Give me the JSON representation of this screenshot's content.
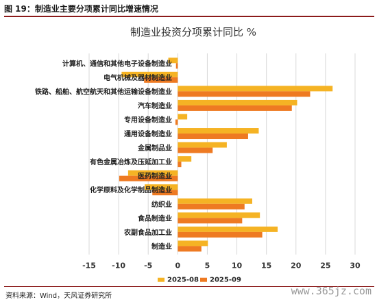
{
  "header": {
    "title": "图 19：制造业主要分项累计同比增速情况"
  },
  "footer": {
    "source": "资料来源：Wind，天风证券研究所",
    "watermark": "www.365jz.com"
  },
  "colors": {
    "series_a": "#F5B324",
    "series_b": "#EE7A22",
    "grid": "#d8d8d8",
    "header_rule": "#8b1a1a"
  },
  "chart_data": {
    "type": "bar",
    "orientation": "horizontal",
    "title": "制造业投资分项累计同比 %",
    "categories": [
      "计算机、通信和其他电子设备制造业",
      "电气机械及器材制造业",
      "铁路、船舶、航空航天和其他运输设备制造业",
      "汽车制造业",
      "专用设备制造业",
      "通用设备制造业",
      "金属制品业",
      "有色金属冶炼及压延加工业",
      "医药制造业",
      "化学原料及化学制品制造业",
      "纺织业",
      "食品制造业",
      "农副食品加工业",
      "制造业"
    ],
    "series": [
      {
        "name": "2025-08",
        "values": [
          -1.6,
          -9.5,
          26.2,
          20.2,
          1.6,
          13.7,
          8.3,
          2.3,
          -8.4,
          -5.6,
          12.6,
          13.9,
          16.9,
          5.1
        ]
      },
      {
        "name": "2025-09",
        "values": [
          -0.3,
          -5.7,
          22.4,
          19.3,
          -0.4,
          11.9,
          5.9,
          0.6,
          -9.9,
          -4.3,
          11.3,
          10.9,
          14.3,
          4.0
        ]
      }
    ],
    "xlim": [
      -15,
      30
    ],
    "xticks": [
      -15,
      -10,
      -5,
      0,
      5,
      10,
      15,
      20,
      25,
      30
    ],
    "grid": true,
    "legend": "bottom"
  }
}
